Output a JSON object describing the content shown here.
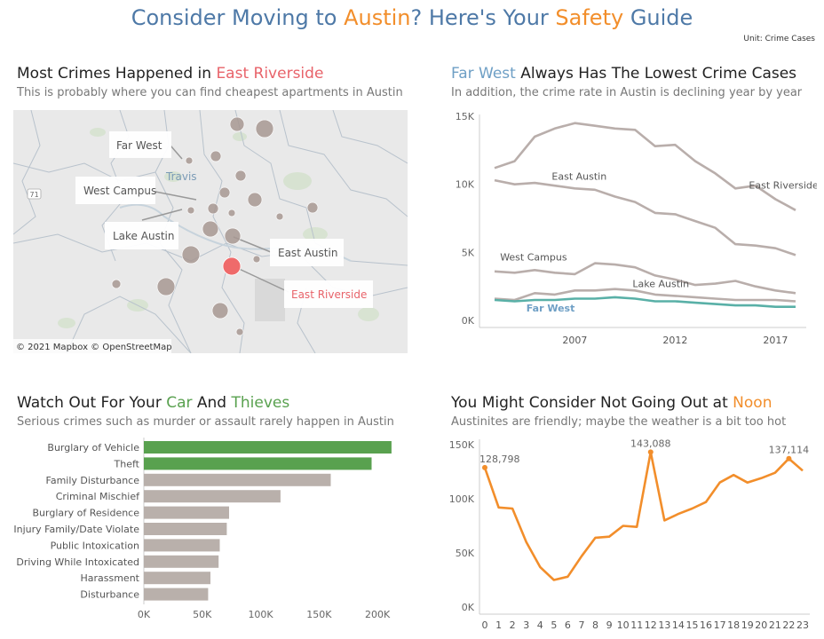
{
  "header": {
    "title_part1": "Consider Moving to ",
    "title_city": "Austin",
    "title_part2": "? Here's Your ",
    "title_safety": "Safety",
    "title_part3": " Guide",
    "unit": "Unit: Crime Cases"
  },
  "colors": {
    "title_blue": "#4e79a7",
    "accent_orange": "#f28e2b",
    "accent_red": "#e8636a",
    "accent_blue": "#6e9fc5",
    "accent_green": "#59a14f",
    "neutral_bar": "#b9b0ab",
    "neutral_line": "#b9aeab",
    "teal_line": "#59b0a7"
  },
  "map_panel": {
    "heading_part1": "Most Crimes Happened in ",
    "heading_highlight": "East Riverside",
    "subtitle": "This is probably where you can find cheapest apartments in Austin",
    "labels": {
      "far_west": "Far West",
      "west_campus": "West Campus",
      "lake_austin": "Lake Austin",
      "east_austin": "East Austin",
      "east_riverside": "East Riverside",
      "travis": "Travis",
      "road_71": "71"
    },
    "attribution": "© 2021 Mapbox  © OpenStreetMap"
  },
  "line_panel": {
    "heading_highlight": "Far West",
    "heading_rest": " Always Has The Lowest Crime Cases",
    "subtitle": "In addition, the crime rate in Austin is declining year by year"
  },
  "bar_panel": {
    "heading_part1": "Watch Out For Your ",
    "heading_car": "Car",
    "heading_and": " And ",
    "heading_thieves": "Thieves",
    "subtitle": "Serious crimes such as murder or assault rarely happen in Austin"
  },
  "hour_panel": {
    "heading_part1": "You Might Consider Not Going Out at ",
    "heading_highlight": "Noon",
    "subtitle": "Austinites are friendly; maybe the weather is a bit too hot"
  },
  "chart_data": [
    {
      "type": "line",
      "title": "Far West Always Has The Lowest Crime Cases",
      "x": [
        2003,
        2004,
        2005,
        2006,
        2007,
        2008,
        2009,
        2010,
        2011,
        2012,
        2013,
        2014,
        2015,
        2016,
        2017,
        2018
      ],
      "x_ticks": [
        "2007",
        "2012",
        "2017"
      ],
      "y_ticks": [
        "15K",
        "10K",
        "5K",
        "0K"
      ],
      "ylim": [
        0,
        15000
      ],
      "series": [
        {
          "name": "East Riverside",
          "values": [
            11200,
            11700,
            13500,
            14100,
            14500,
            14300,
            14100,
            14000,
            12800,
            12900,
            11700,
            10800,
            9700,
            9900,
            8900,
            8100
          ]
        },
        {
          "name": "East Austin",
          "values": [
            10300,
            10000,
            10100,
            9900,
            9700,
            9600,
            9100,
            8700,
            7900,
            7800,
            7300,
            6800,
            5600,
            5500,
            5300,
            4800
          ]
        },
        {
          "name": "West Campus",
          "values": [
            3600,
            3500,
            3700,
            3500,
            3400,
            4200,
            4100,
            3900,
            3300,
            3000,
            2600,
            2700,
            2900,
            2500,
            2200,
            2000
          ]
        },
        {
          "name": "Lake Austin",
          "values": [
            1600,
            1500,
            2000,
            1900,
            2200,
            2200,
            2300,
            2200,
            1900,
            1800,
            1700,
            1600,
            1500,
            1500,
            1500,
            1400
          ]
        },
        {
          "name": "Far West",
          "values": [
            1500,
            1400,
            1500,
            1500,
            1600,
            1600,
            1700,
            1600,
            1400,
            1400,
            1300,
            1200,
            1100,
            1100,
            1000,
            1000
          ]
        }
      ]
    },
    {
      "type": "bar",
      "title": "Watch Out For Your Car And Thieves",
      "orientation": "horizontal",
      "categories": [
        "Burglary of Vehicle",
        "Theft",
        "Family Disturbance",
        "Criminal Mischief",
        "Burglary of Residence",
        "Injury Family/Date Violate",
        "Public Intoxication",
        "Driving While Intoxicated",
        "Harassment",
        "Disturbance"
      ],
      "values": [
        212000,
        195000,
        160000,
        117000,
        73000,
        71000,
        65000,
        64000,
        57000,
        55000
      ],
      "highlight_count": 2,
      "x_ticks": [
        "0K",
        "50K",
        "100K",
        "150K",
        "200K"
      ],
      "xlim": [
        0,
        225000
      ]
    },
    {
      "type": "line",
      "title": "You Might Consider Not Going Out at Noon",
      "x": [
        "0",
        "1",
        "2",
        "3",
        "4",
        "5",
        "6",
        "7",
        "8",
        "9",
        "10",
        "11",
        "12",
        "13",
        "14",
        "15",
        "16",
        "17",
        "18",
        "19",
        "20",
        "21",
        "22",
        "23"
      ],
      "values": [
        128798,
        92000,
        91000,
        60000,
        37000,
        25000,
        28000,
        47000,
        64000,
        65000,
        75000,
        74000,
        143088,
        80000,
        86000,
        91000,
        97000,
        115000,
        122000,
        115000,
        119000,
        124000,
        137114,
        126000
      ],
      "annotations": [
        {
          "index": 0,
          "text": "128,798"
        },
        {
          "index": 12,
          "text": "143,088"
        },
        {
          "index": 22,
          "text": "137,114"
        }
      ],
      "y_ticks": [
        "150K",
        "100K",
        "50K",
        "0K"
      ],
      "ylim": [
        0,
        150000
      ]
    }
  ]
}
